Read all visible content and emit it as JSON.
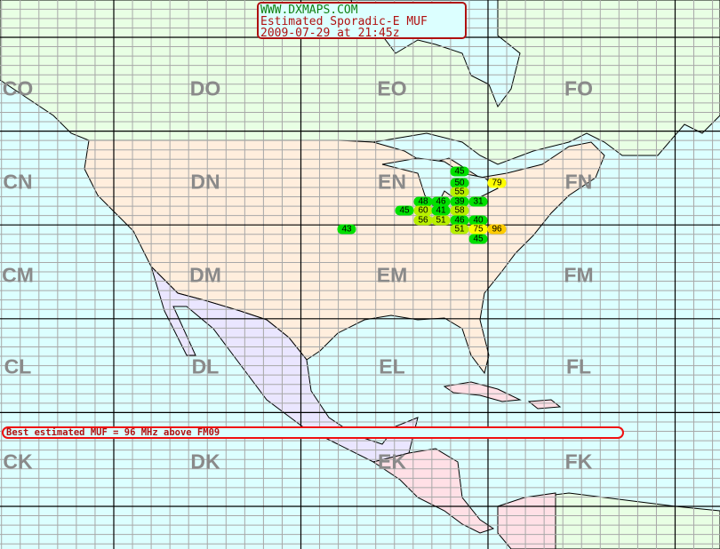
{
  "title": {
    "site": "WWW.DXMAPS.COM",
    "subtitle": "Estimated Sporadic-E MUF",
    "timestamp": "2009-07-29 at 21:45z"
  },
  "summary": "Best estimated MUF = 96 MHz above FM09",
  "fields": [
    "CO",
    "DO",
    "EO",
    "FO",
    "CN",
    "DN",
    "EN",
    "FN",
    "CM",
    "DM",
    "EM",
    "FM",
    "CL",
    "DL",
    "EL",
    "FL",
    "CK",
    "DK",
    "EK",
    "FK"
  ],
  "colors": {
    "ocean": "#dcffff",
    "canada": "#e8ffe4",
    "usa": "#ffeedd",
    "mexico": "#eae6ff",
    "central_south_america": "#ffe0e6",
    "grid_minor": "#a8a8a8",
    "grid_major": "#000000",
    "muf_low": "#00e000",
    "muf_mid": "#b8f000",
    "muf_high": "#ffff00",
    "muf_top": "#ffcc00"
  },
  "muf_reports": [
    {
      "value": "45",
      "level": "muf_low"
    },
    {
      "value": "50",
      "level": "muf_low"
    },
    {
      "value": "79",
      "level": "muf_high"
    },
    {
      "value": "55",
      "level": "muf_mid"
    },
    {
      "value": "48",
      "level": "muf_low"
    },
    {
      "value": "46",
      "level": "muf_low"
    },
    {
      "value": "39",
      "level": "muf_low"
    },
    {
      "value": "31",
      "level": "muf_low"
    },
    {
      "value": "45",
      "level": "muf_low"
    },
    {
      "value": "60",
      "level": "muf_mid"
    },
    {
      "value": "41",
      "level": "muf_low"
    },
    {
      "value": "58",
      "level": "muf_mid"
    },
    {
      "value": "56",
      "level": "muf_mid"
    },
    {
      "value": "51",
      "level": "muf_mid"
    },
    {
      "value": "46",
      "level": "muf_low"
    },
    {
      "value": "40",
      "level": "muf_low"
    },
    {
      "value": "43",
      "level": "muf_low"
    },
    {
      "value": "51",
      "level": "muf_mid"
    },
    {
      "value": "75",
      "level": "muf_high"
    },
    {
      "value": "96",
      "level": "muf_top"
    },
    {
      "value": "45",
      "level": "muf_low"
    }
  ]
}
